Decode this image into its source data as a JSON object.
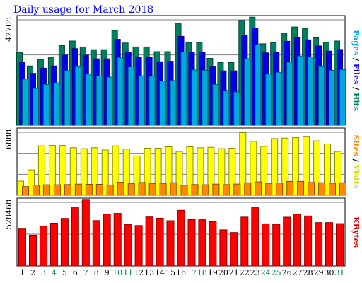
{
  "chart_data": {
    "type": "bar",
    "title": "Daily usage for March 2018",
    "categories": [
      "1",
      "2",
      "3",
      "4",
      "5",
      "6",
      "7",
      "8",
      "9",
      "10",
      "11",
      "12",
      "13",
      "14",
      "15",
      "16",
      "17",
      "18",
      "19",
      "20",
      "21",
      "22",
      "23",
      "24",
      "25",
      "26",
      "27",
      "28",
      "29",
      "30",
      "31"
    ],
    "weekend_days": [
      "3",
      "4",
      "10",
      "11",
      "17",
      "18",
      "24",
      "25",
      "31"
    ],
    "panels": [
      {
        "id": "hits-files-pages",
        "y_max_label": "42708",
        "ylim": [
          0,
          42708
        ],
        "grid": true,
        "right_labels": [
          {
            "text": "Pages",
            "color": "#00aadd"
          },
          {
            "text": " / ",
            "color": "#000000"
          },
          {
            "text": "Files",
            "color": "#0000ee"
          },
          {
            "text": " / ",
            "color": "#000000"
          },
          {
            "text": "Hits",
            "color": "#008060"
          }
        ],
        "series": [
          {
            "name": "Hits",
            "color": "#008060",
            "values": [
              29500,
              24000,
              26700,
              27600,
              32300,
              34100,
              31700,
              30600,
              30600,
              38400,
              33300,
              31700,
              31700,
              29800,
              29800,
              41100,
              33500,
              33500,
              27100,
              25400,
              25400,
              42500,
              43800,
              33000,
              33500,
              37300,
              39800,
              39100,
              35400,
              33600,
              34100
            ]
          },
          {
            "name": "Files",
            "color": "#0000ee",
            "values": [
              25400,
              21000,
              23100,
              24000,
              28400,
              31000,
              28400,
              26900,
              26900,
              34800,
              29500,
              27500,
              27500,
              25700,
              25900,
              36000,
              29500,
              29500,
              23900,
              22000,
              22000,
              36300,
              39400,
              29300,
              29500,
              34000,
              35400,
              34600,
              32100,
              30000,
              30700
            ]
          },
          {
            "name": "Pages",
            "color": "#00aadd",
            "values": [
              18700,
              14900,
              16500,
              17200,
              22100,
              24000,
              20700,
              19900,
              19500,
              27400,
              23700,
              20000,
              19800,
              17900,
              18100,
              29700,
              22400,
              22200,
              16500,
              13900,
              13400,
              27000,
              32600,
              20700,
              21400,
              25500,
              28000,
              27700,
              24000,
              22200,
              22500
            ]
          }
        ]
      },
      {
        "id": "visits-sites",
        "y_max_label": "6888",
        "ylim": [
          0,
          6888
        ],
        "grid": true,
        "right_labels": [
          {
            "text": "Sites",
            "color": "#ff8800"
          },
          {
            "text": " / ",
            "color": "#000000"
          },
          {
            "text": "Visits",
            "color": "#dddd00"
          }
        ],
        "series": [
          {
            "name": "Visits",
            "color": "#ffff00",
            "values": [
              1550,
              2780,
              5400,
              5450,
              5450,
              5200,
              5100,
              5200,
              4950,
              5400,
              5050,
              4300,
              5150,
              5150,
              5300,
              4800,
              5300,
              5200,
              5250,
              5100,
              5150,
              6850,
              5900,
              5350,
              6200,
              6250,
              6300,
              6450,
              5950,
              5600,
              4800
            ]
          },
          {
            "name": "Sites",
            "color": "#ff8800",
            "values": [
              950,
              1120,
              1150,
              1150,
              1180,
              1220,
              1200,
              1200,
              1130,
              1430,
              1270,
              1400,
              1270,
              1300,
              1380,
              1100,
              1180,
              1150,
              1220,
              1170,
              1230,
              1370,
              1460,
              1310,
              1350,
              1520,
              1520,
              1400,
              1380,
              1320,
              1380
            ]
          }
        ]
      },
      {
        "id": "kbytes",
        "y_max_label": "528468",
        "ylim": [
          0,
          528468
        ],
        "grid": true,
        "right_labels": [
          {
            "text": "KBytes",
            "color": "#dd0000"
          }
        ],
        "series": [
          {
            "name": "KBytes",
            "color": "#ff0000",
            "values": [
              313000,
              256000,
              330000,
              355000,
              395000,
              490000,
              553000,
              377000,
              430000,
              437000,
              345000,
              336000,
              407000,
              397000,
              376000,
              462000,
              385000,
              384000,
              369000,
              300000,
              278000,
              406000,
              484000,
              350000,
              346000,
              405000,
              430000,
              415000,
              360000,
              360000,
              352000
            ]
          }
        ]
      }
    ]
  }
}
